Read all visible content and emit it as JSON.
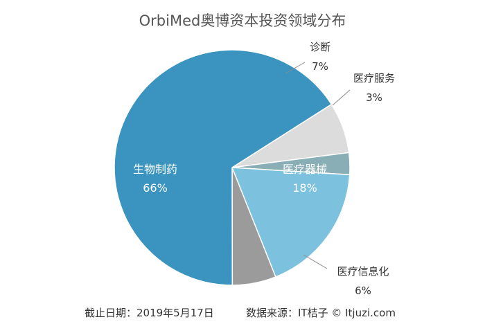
{
  "chart_data": {
    "type": "pie",
    "title": "OrbiMed奥博资本投资领域分布",
    "slices": [
      {
        "label": "诊断",
        "value": 7,
        "value_label": "7%",
        "color": "#dcdcdc"
      },
      {
        "label": "医疗服务",
        "value": 3,
        "value_label": "3%",
        "color": "#8aaeb5"
      },
      {
        "label": "医疗器械",
        "value": 18,
        "value_label": "18%",
        "color": "#7cc1de"
      },
      {
        "label": "医疗信息化",
        "value": 6,
        "value_label": "6%",
        "color": "#9b9b9b"
      },
      {
        "label": "生物制药",
        "value": 66,
        "value_label": "66%",
        "color": "#3a94bf"
      }
    ],
    "footer": {
      "date": "截止日期：2019年5月17日",
      "source": "数据来源：IT桔子 © Itjuzi.com"
    }
  }
}
